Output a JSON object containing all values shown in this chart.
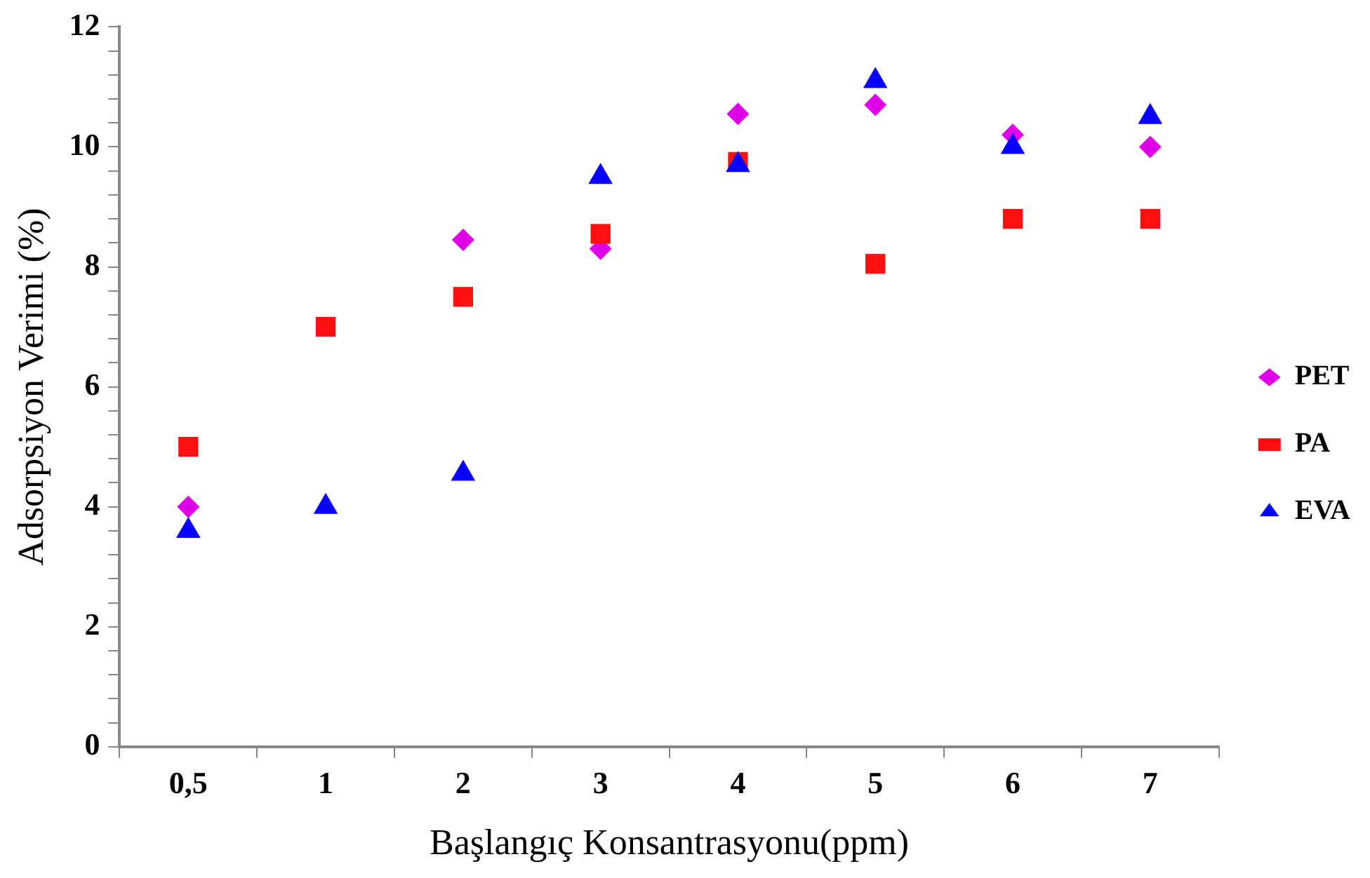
{
  "chart_data": {
    "type": "scatter",
    "xlabel": "Başlangıç Konsantrasyonu(ppm)",
    "ylabel": "Adsorpsiyon Verimi (%)",
    "categories": [
      "0,5",
      "1",
      "2",
      "3",
      "4",
      "5",
      "6",
      "7"
    ],
    "ylim": [
      0,
      12
    ],
    "yticks": [
      0,
      {
        "value": 0.4,
        "label": null
      },
      {
        "value": 0.8,
        "label": null
      },
      {
        "value": 1.2,
        "label": null
      },
      {
        "value": 1.6,
        "label": null
      },
      2,
      {
        "value": 2.4,
        "label": null
      },
      {
        "value": 2.8,
        "label": null
      },
      {
        "value": 3.2,
        "label": null
      },
      {
        "value": 3.6,
        "label": null
      },
      4,
      {
        "value": 4.4,
        "label": null
      },
      {
        "value": 4.8,
        "label": null
      },
      {
        "value": 5.2,
        "label": null
      },
      {
        "value": 5.6,
        "label": null
      },
      6,
      {
        "value": 6.4,
        "label": null
      },
      {
        "value": 6.8,
        "label": null
      },
      {
        "value": 7.2,
        "label": null
      },
      {
        "value": 7.6,
        "label": null
      },
      8,
      {
        "value": 8.4,
        "label": null
      },
      {
        "value": 8.8,
        "label": null
      },
      {
        "value": 9.2,
        "label": null
      },
      {
        "value": 9.6,
        "label": null
      },
      10,
      {
        "value": 10.4,
        "label": null
      },
      {
        "value": 10.8,
        "label": null
      },
      {
        "value": 11.2,
        "label": null
      },
      {
        "value": 11.6,
        "label": null
      },
      12
    ],
    "grid": false,
    "legend": "right",
    "series": [
      {
        "name": "PET",
        "color": "#e000e8",
        "marker": "diamond",
        "values": [
          4.0,
          null,
          8.45,
          8.3,
          10.55,
          10.7,
          10.2,
          10.0
        ]
      },
      {
        "name": "PA",
        "color": "#ff1010",
        "marker": "square",
        "values": [
          5.0,
          7.0,
          7.5,
          8.55,
          9.75,
          8.05,
          8.8,
          8.8
        ]
      },
      {
        "name": "EVA",
        "color": "#0a00ff",
        "marker": "triangle",
        "values": [
          3.6,
          4.0,
          4.55,
          9.5,
          9.7,
          11.1,
          10.0,
          10.5
        ]
      }
    ]
  }
}
